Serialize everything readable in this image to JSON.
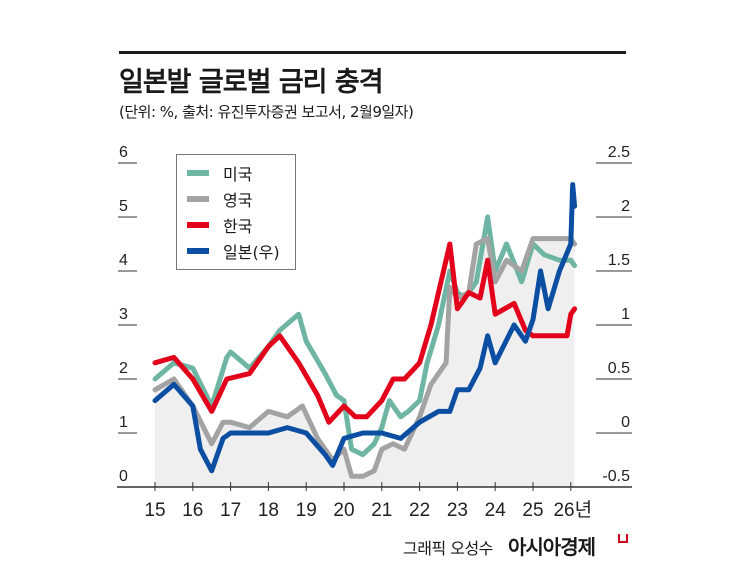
{
  "header": {
    "title": "일본발 글로벌 금리 충격",
    "subtitle": "(단위: %, 출처: 유진투자증권 보고서, 2월9일자)"
  },
  "footer": {
    "credit": "그래픽 오성수",
    "brand": "아시아경제"
  },
  "chart_data": {
    "type": "line",
    "title": "일본발 글로벌 금리 충격",
    "unit": "%",
    "x_ticks": [
      "15",
      "16",
      "17",
      "18",
      "19",
      "20",
      "21",
      "22",
      "23",
      "24",
      "25",
      "26년"
    ],
    "x_tick_values": [
      15,
      16,
      17,
      18,
      19,
      20,
      21,
      22,
      23,
      24,
      25,
      26
    ],
    "left_axis": {
      "ticks": [
        "0",
        "1",
        "2",
        "3",
        "4",
        "5",
        "6"
      ],
      "ylim": [
        0,
        6
      ]
    },
    "right_axis": {
      "ticks": [
        "-0.5",
        "0",
        "0.5",
        "1",
        "1.5",
        "2",
        "2.5"
      ],
      "ylim": [
        -0.5,
        2.5
      ]
    },
    "legend_placement": "top-left",
    "grid": false,
    "series": [
      {
        "name": "미국",
        "color": "#6fb5a3",
        "axis": "left",
        "x": [
          15,
          15.5,
          16,
          16.5,
          16.9,
          17,
          17.5,
          18,
          18.3,
          18.8,
          19,
          19.5,
          19.8,
          20,
          20.2,
          20.5,
          20.8,
          21,
          21.2,
          21.5,
          21.7,
          22,
          22.2,
          22.5,
          22.8,
          23,
          23.2,
          23.5,
          23.8,
          24,
          24.3,
          24.7,
          25,
          25.3,
          25.7,
          26,
          26.1
        ],
        "y": [
          2.0,
          2.3,
          2.2,
          1.5,
          2.4,
          2.5,
          2.2,
          2.6,
          2.9,
          3.2,
          2.7,
          2.1,
          1.7,
          1.6,
          0.7,
          0.6,
          0.8,
          1.1,
          1.6,
          1.3,
          1.4,
          1.6,
          2.3,
          3.0,
          4.0,
          3.6,
          3.5,
          3.8,
          5.0,
          4.0,
          4.5,
          3.8,
          4.5,
          4.3,
          4.2,
          4.2,
          4.1
        ]
      },
      {
        "name": "영국",
        "color": "#a3a3a3",
        "axis": "left",
        "x": [
          15,
          15.5,
          16,
          16.5,
          16.8,
          17,
          17.5,
          18,
          18.5,
          18.9,
          19.3,
          19.7,
          20,
          20.2,
          20.5,
          20.8,
          21,
          21.3,
          21.6,
          22,
          22.3,
          22.7,
          22.8,
          23,
          23.3,
          23.5,
          23.8,
          24,
          24.3,
          24.7,
          25,
          25.5,
          26,
          26.1
        ],
        "y": [
          1.8,
          2.0,
          1.5,
          0.8,
          1.2,
          1.2,
          1.1,
          1.4,
          1.3,
          1.5,
          0.9,
          0.5,
          0.7,
          0.2,
          0.2,
          0.3,
          0.7,
          0.8,
          0.7,
          1.3,
          1.9,
          2.3,
          3.7,
          3.5,
          3.6,
          4.5,
          4.6,
          3.8,
          4.2,
          4.0,
          4.6,
          4.6,
          4.6,
          4.5
        ]
      },
      {
        "name": "한국",
        "color": "#e3001b",
        "axis": "left",
        "x": [
          15,
          15.5,
          16,
          16.5,
          16.9,
          17.5,
          18,
          18.3,
          18.8,
          19.3,
          19.6,
          20,
          20.3,
          20.6,
          21,
          21.3,
          21.6,
          22,
          22.3,
          22.5,
          22.8,
          23,
          23.3,
          23.6,
          23.8,
          24,
          24.5,
          24.8,
          25,
          25.5,
          25.9,
          26,
          26.1
        ],
        "y": [
          2.3,
          2.4,
          2.0,
          1.4,
          2.0,
          2.1,
          2.6,
          2.8,
          2.3,
          1.7,
          1.2,
          1.5,
          1.3,
          1.3,
          1.6,
          2.0,
          2.0,
          2.3,
          3.0,
          3.6,
          4.5,
          3.3,
          3.6,
          3.5,
          4.2,
          3.2,
          3.4,
          2.9,
          2.8,
          2.8,
          2.8,
          3.2,
          3.3
        ]
      },
      {
        "name": "일본(우)",
        "color": "#0b4ea2",
        "axis": "right",
        "x": [
          15,
          15.5,
          16,
          16.2,
          16.5,
          16.8,
          17,
          17.5,
          18,
          18.5,
          19,
          19.5,
          19.7,
          20,
          20.5,
          21,
          21.5,
          22,
          22.5,
          22.8,
          23,
          23.3,
          23.6,
          23.8,
          24,
          24.5,
          24.8,
          25,
          25.2,
          25.4,
          25.7,
          26,
          26.05,
          26.1
        ],
        "y": [
          0.3,
          0.45,
          0.25,
          -0.15,
          -0.35,
          -0.05,
          0,
          0,
          0,
          0.05,
          0,
          -0.2,
          -0.3,
          -0.05,
          0,
          0,
          -0.05,
          0.1,
          0.2,
          0.2,
          0.4,
          0.4,
          0.6,
          0.9,
          0.65,
          1.0,
          0.85,
          1.05,
          1.5,
          1.15,
          1.5,
          1.75,
          2.3,
          2.1
        ]
      }
    ]
  }
}
